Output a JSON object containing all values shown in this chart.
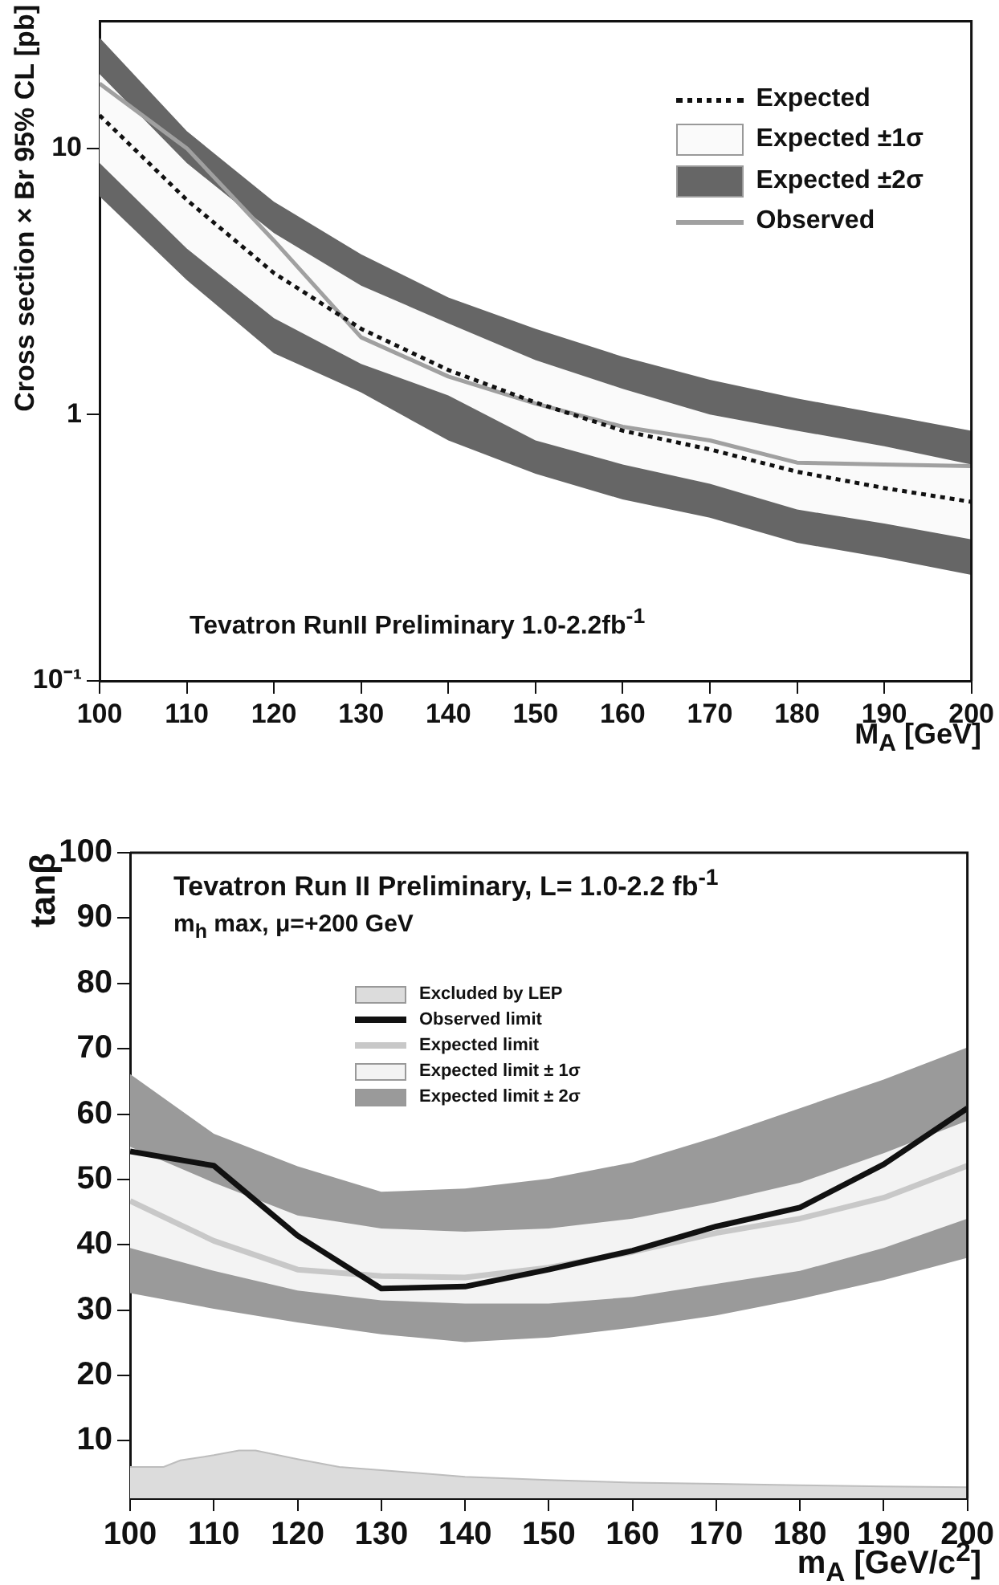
{
  "chart_data": [
    {
      "type": "line",
      "xlabel": "M$_{A}$ [GeV]",
      "ylabel": "Cross section × Br 95% CL [pb]",
      "log": "y",
      "grid": false,
      "legend": "top right",
      "marker": "none",
      "x": [
        100,
        110,
        120,
        130,
        140,
        150,
        160,
        170,
        180,
        190,
        200
      ],
      "xlim": [
        100,
        200
      ],
      "xticks": [
        100,
        110,
        120,
        130,
        140,
        150,
        160,
        170,
        180,
        190,
        200
      ],
      "ylim": [
        0.1,
        30
      ],
      "yticks": [
        {
          "value": 0.1,
          "label": "10⁻¹"
        },
        1,
        10
      ],
      "series": [
        {
          "name": "Expected",
          "color": "#111111",
          "line_style": "dotted",
          "values": [
            13.3,
            6.4,
            3.4,
            2.1,
            1.47,
            1.11,
            0.87,
            0.74,
            0.61,
            0.53,
            0.47
          ]
        },
        {
          "name": "Expected ±1σ",
          "type": "area",
          "color": "#fafafa",
          "values": [
            null,
            null,
            null,
            null,
            null,
            null,
            null,
            null,
            null,
            null,
            null
          ],
          "lower": [
            8.8,
            4.2,
            2.3,
            1.55,
            1.18,
            0.8,
            0.65,
            0.55,
            0.44,
            0.39,
            0.34
          ],
          "upper": [
            19,
            8.8,
            4.8,
            3.05,
            2.2,
            1.6,
            1.25,
            1.0,
            0.87,
            0.76,
            0.65
          ]
        },
        {
          "name": "Expected ±2σ",
          "type": "area",
          "color": "#666666",
          "values": [
            null,
            null,
            null,
            null,
            null,
            null,
            null,
            null,
            null,
            null,
            null
          ],
          "lower": [
            6.6,
            3.2,
            1.7,
            1.21,
            0.8,
            0.6,
            0.48,
            0.41,
            0.33,
            0.29,
            0.25
          ],
          "upper": [
            26,
            11.6,
            6.3,
            4.0,
            2.75,
            2.1,
            1.65,
            1.35,
            1.15,
            1.0,
            0.87
          ]
        },
        {
          "name": "Observed",
          "color": "#a0a0a0",
          "line_style": "solid",
          "values": [
            17.5,
            10,
            4.5,
            1.95,
            1.39,
            1.1,
            0.9,
            0.8,
            0.66,
            0.65,
            0.64
          ]
        }
      ],
      "annotations": [
        "Tevatron RunII Preliminary 1.0-2.2fb$^{-1}$"
      ]
    },
    {
      "type": "line",
      "xlabel": "m$_{A}$ [GeV/c$^{2}$]",
      "ylabel": "tanβ",
      "grid": false,
      "legend": "top",
      "marker": "none",
      "x": [
        100,
        110,
        120,
        130,
        140,
        150,
        160,
        170,
        180,
        190,
        200
      ],
      "xlim": [
        100,
        200
      ],
      "xticks": [
        100,
        110,
        120,
        130,
        140,
        150,
        160,
        170,
        180,
        190,
        200
      ],
      "ylim": [
        1.2,
        100
      ],
      "yticks": [
        10,
        20,
        30,
        40,
        50,
        60,
        70,
        80,
        90,
        100
      ],
      "series": [
        {
          "name": "Excluded by LEP",
          "type": "area",
          "color": "#dcdcdc",
          "x": [
            100,
            104,
            106,
            110,
            113,
            115,
            120,
            125,
            130,
            140,
            150,
            160,
            170,
            180,
            190,
            200
          ],
          "values": [
            6,
            6,
            7,
            7.8,
            8.5,
            8.5,
            7.2,
            6,
            5.5,
            4.5,
            4,
            3.6,
            3.4,
            3.2,
            3.0,
            2.9
          ]
        },
        {
          "name": "Observed limit",
          "color": "#111111",
          "line_style": "solid",
          "values": [
            54.3,
            52.1,
            41.4,
            33.3,
            33.6,
            36.2,
            39.1,
            42.8,
            45.7,
            52.3,
            60.9
          ]
        },
        {
          "name": "Expected limit",
          "color": "#c8c8c8",
          "line_style": "solid",
          "values": [
            46.7,
            40.6,
            36.2,
            35.2,
            35,
            36.5,
            38.9,
            41.8,
            44,
            47.2,
            52.1
          ]
        },
        {
          "name": "Expected limit ± 1σ",
          "type": "area",
          "color": "#f3f3f3",
          "values": [
            null,
            null,
            null,
            null,
            null,
            null,
            null,
            null,
            null,
            null,
            null
          ],
          "lower": [
            39.5,
            36,
            33,
            31.5,
            31,
            31,
            32,
            34,
            36,
            39.5,
            44
          ],
          "upper": [
            55,
            49.5,
            44.5,
            42.5,
            42,
            42.5,
            44,
            46.5,
            49.5,
            54,
            59
          ]
        },
        {
          "name": "Expected limit ± 2σ",
          "type": "area",
          "color": "#9a9a9a",
          "values": [
            null,
            null,
            null,
            null,
            null,
            null,
            null,
            null,
            null,
            null,
            null
          ],
          "lower": [
            32.6,
            30.2,
            28.1,
            26.3,
            25.1,
            25.8,
            27.3,
            29.2,
            31.7,
            34.6,
            38
          ],
          "upper": [
            66.1,
            57,
            52,
            48.1,
            48.6,
            50.1,
            52.6,
            56.5,
            60.9,
            65.3,
            70.2
          ]
        }
      ],
      "annotations": [
        "Tevatron Run II Preliminary, L= 1.0-2.2 fb$^{-1}$",
        "m$_{h}$ max, μ=+200 GeV"
      ]
    }
  ]
}
